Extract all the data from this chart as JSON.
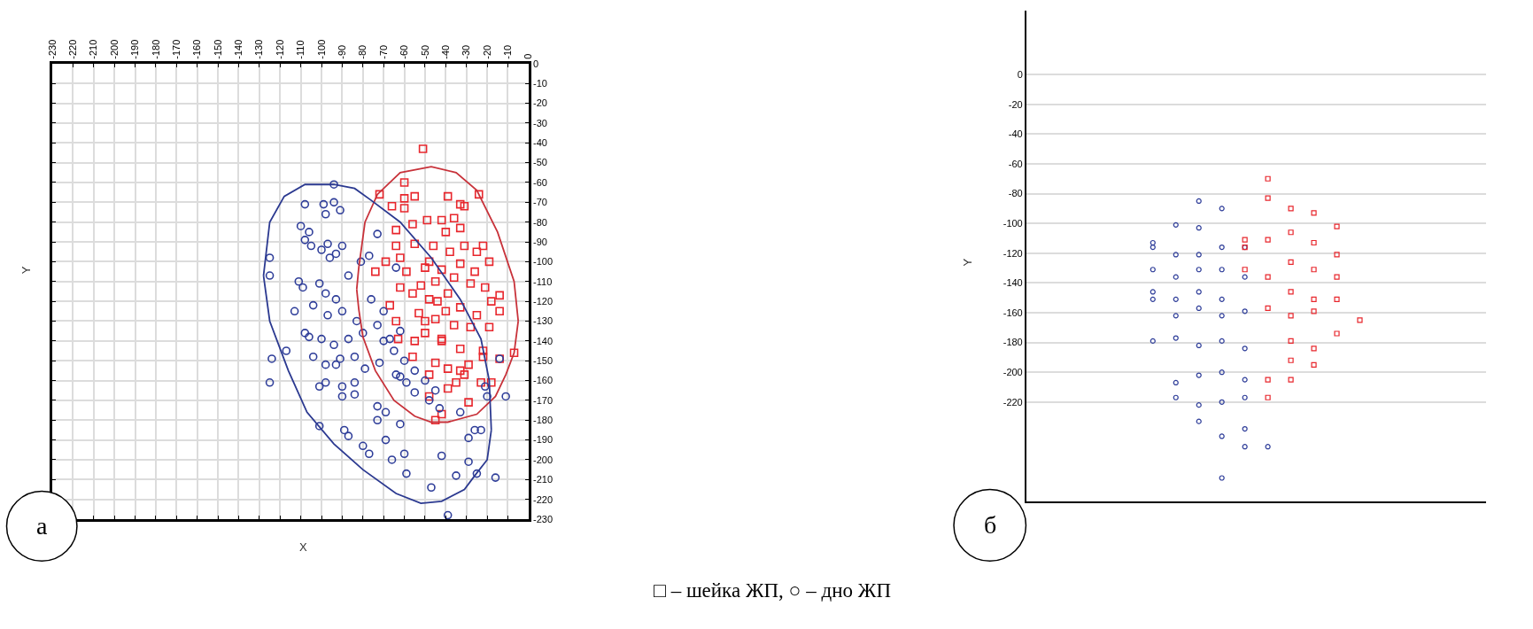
{
  "chart_data": [
    {
      "type": "scatter",
      "xlabel": "X",
      "ylabel": "Y",
      "annotations": [
        "а",
        "□ – шейка ЖП, ○ – дно ЖП"
      ],
      "xlim": [
        -230,
        0
      ],
      "ylim": [
        -230,
        0
      ],
      "xticks": [
        -230,
        -220,
        -210,
        -200,
        -190,
        -180,
        -170,
        -160,
        -150,
        -140,
        -130,
        -120,
        -110,
        -100,
        -90,
        -80,
        -70,
        -60,
        -50,
        -40,
        -30,
        -20,
        -10,
        0
      ],
      "yticks": [
        0,
        -10,
        -20,
        -30,
        -40,
        -50,
        -60,
        -70,
        -80,
        -90,
        -100,
        -110,
        -120,
        -130,
        -140,
        -150,
        -160,
        -170,
        -180,
        -190,
        -200,
        -210,
        -220,
        -230
      ],
      "grid": true,
      "series": [
        {
          "marker": "square",
          "color": "#e8262c",
          "x": [
            -51,
            -60,
            -72,
            -66,
            -60,
            -55,
            -60,
            -39,
            -33,
            -31,
            -24,
            -64,
            -56,
            -49,
            -42,
            -36,
            -33,
            -40,
            -22,
            -19,
            -25,
            -31,
            -46,
            -55,
            -64,
            -69,
            -62,
            -74,
            -59,
            -50,
            -42,
            -33,
            -26,
            -21,
            -28,
            -14,
            -18,
            -14,
            -62,
            -56,
            -48,
            -39,
            -33,
            -25,
            -19,
            -28,
            -36,
            -45,
            -53,
            -64,
            -67,
            -50,
            -42,
            -33,
            -7,
            -14,
            -22,
            -45,
            -39,
            -31,
            -48,
            -56,
            -63,
            -29,
            -22,
            -35,
            -29,
            -23,
            -18,
            -42,
            -45,
            -39,
            -48,
            -33,
            -45,
            -40,
            -50,
            -42,
            -55,
            -48,
            -38,
            -52,
            -44,
            -36
          ],
          "values": [
            -43,
            -60,
            -66,
            -72,
            -73,
            -67,
            -68,
            -67,
            -71,
            -72,
            -66,
            -84,
            -81,
            -79,
            -79,
            -78,
            -83,
            -85,
            -92,
            -100,
            -95,
            -92,
            -92,
            -91,
            -92,
            -100,
            -98,
            -105,
            -105,
            -103,
            -104,
            -101,
            -105,
            -113,
            -111,
            -117,
            -120,
            -125,
            -113,
            -116,
            -119,
            -116,
            -123,
            -127,
            -133,
            -133,
            -132,
            -129,
            -126,
            -130,
            -122,
            -136,
            -139,
            -144,
            -146,
            -149,
            -145,
            -151,
            -154,
            -157,
            -157,
            -148,
            -139,
            -152,
            -148,
            -161,
            -171,
            -161,
            -161,
            -177,
            -180,
            -164,
            -168,
            -155,
            -110,
            -125,
            -130,
            -140,
            -140,
            -100,
            -95,
            -112,
            -120,
            -108
          ]
        },
        {
          "marker": "circle",
          "color": "#2e3d99",
          "x": [
            -94,
            -108,
            -99,
            -98,
            -94,
            -91,
            -125,
            -73,
            -110,
            -108,
            -105,
            -97,
            -93,
            -90,
            -106,
            -100,
            -96,
            -125,
            -77,
            -111,
            -109,
            -101,
            -98,
            -93,
            -87,
            -81,
            -113,
            -104,
            -97,
            -90,
            -83,
            -108,
            -106,
            -100,
            -94,
            -87,
            -80,
            -73,
            -76,
            -70,
            -64,
            -124,
            -117,
            -104,
            -98,
            -91,
            -84,
            -79,
            -72,
            -64,
            -59,
            -67,
            -125,
            -101,
            -90,
            -84,
            -14,
            -21,
            -98,
            -90,
            -84,
            -73,
            -69,
            -73,
            -62,
            -89,
            -87,
            -101,
            -80,
            -77,
            -69,
            -66,
            -60,
            -59,
            -47,
            -42,
            -39,
            -35,
            -29,
            -25,
            -16,
            -29,
            -26,
            -23,
            -11,
            -20,
            -55,
            -48,
            -43,
            -33,
            -62,
            -93,
            -65,
            -60,
            -55,
            -70,
            -62,
            -50,
            -45
          ],
          "values": [
            -61,
            -71,
            -71,
            -76,
            -70,
            -74,
            -98,
            -86,
            -82,
            -89,
            -92,
            -91,
            -96,
            -92,
            -85,
            -94,
            -98,
            -107,
            -97,
            -110,
            -113,
            -111,
            -116,
            -119,
            -107,
            -100,
            -125,
            -122,
            -127,
            -125,
            -130,
            -136,
            -138,
            -139,
            -142,
            -139,
            -136,
            -132,
            -119,
            -125,
            -103,
            -149,
            -145,
            -148,
            -152,
            -149,
            -148,
            -154,
            -151,
            -157,
            -161,
            -139,
            -161,
            -163,
            -163,
            -161,
            -149,
            -163,
            -161,
            -168,
            -167,
            -173,
            -176,
            -180,
            -182,
            -185,
            -188,
            -183,
            -193,
            -197,
            -190,
            -200,
            -197,
            -207,
            -214,
            -198,
            -228,
            -208,
            -201,
            -207,
            -209,
            -189,
            -185,
            -185,
            -168,
            -168,
            -166,
            -170,
            -174,
            -176,
            -158,
            -152,
            -145,
            -150,
            -155,
            -140,
            -135,
            -160,
            -165
          ]
        },
        {
          "type": "line",
          "marker": "none",
          "line_style": "solid",
          "color": "#c8323a",
          "x": [
            -83,
            -82,
            -79,
            -73,
            -62,
            -47,
            -35,
            -25,
            -15,
            -7,
            -5
          ],
          "values": [
            -114,
            -103,
            -80,
            -66,
            -55,
            -52,
            -55,
            -64,
            -85,
            -110,
            -130
          ]
        },
        {
          "type": "line",
          "marker": "none",
          "line_style": "solid",
          "color": "#c8323a",
          "x": [
            -83,
            -82,
            -80,
            -74,
            -65,
            -55,
            -47,
            -39,
            -25,
            -16,
            -11,
            -7,
            -5
          ],
          "values": [
            -114,
            -124,
            -138,
            -155,
            -170,
            -178,
            -181,
            -181,
            -177,
            -168,
            -157,
            -146,
            -130
          ]
        },
        {
          "type": "line",
          "marker": "none",
          "line_style": "solid",
          "color": "#2b3990",
          "x": [
            -128,
            -125,
            -118,
            -108,
            -94,
            -84,
            -76,
            -62,
            -47,
            -33,
            -23,
            -19,
            -18
          ],
          "values": [
            -107,
            -80,
            -67,
            -61,
            -61,
            -63,
            -69,
            -80,
            -98,
            -119,
            -139,
            -160,
            -185
          ]
        },
        {
          "type": "line",
          "marker": "none",
          "line_style": "solid",
          "color": "#2b3990",
          "x": [
            -128,
            -125,
            -116,
            -107,
            -94,
            -80,
            -64,
            -52,
            -42,
            -31,
            -26,
            -20,
            -18
          ],
          "values": [
            -107,
            -130,
            -155,
            -176,
            -192,
            -205,
            -217,
            -222,
            -221,
            -215,
            -208,
            -200,
            -185
          ]
        }
      ]
    },
    {
      "type": "scatter",
      "ylabel": "Y",
      "annotations": [
        "б"
      ],
      "categories": [
        null,
        null,
        null,
        null,
        null,
        null,
        null,
        null,
        null,
        null,
        null,
        null,
        null,
        null,
        null,
        null,
        null,
        null,
        null,
        null
      ],
      "ylim": [
        -287,
        43
      ],
      "yticks": [
        0,
        -20,
        -40,
        -60,
        -80,
        -100,
        -120,
        -140,
        -160,
        -180,
        -200,
        -220
      ],
      "grid": "y",
      "tick_labels": "y",
      "series": [
        {
          "marker": "circle",
          "color": "#2e3d99",
          "values": [
            null,
            null,
            null,
            null,
            null,
            -113,
            -101,
            -85,
            -90,
            -116,
            -250,
            null,
            null,
            null,
            null,
            null,
            null,
            null,
            null,
            null
          ]
        },
        {
          "marker": "circle",
          "color": "#2e3d99",
          "values": [
            null,
            null,
            null,
            null,
            null,
            -116,
            -121,
            -103,
            -116,
            -136,
            null,
            null,
            null,
            null,
            null,
            null,
            null,
            null,
            null,
            null
          ]
        },
        {
          "marker": "circle",
          "color": "#2e3d99",
          "values": [
            null,
            null,
            null,
            null,
            null,
            -131,
            -136,
            -121,
            -131,
            -159,
            null,
            null,
            null,
            null,
            null,
            null,
            null,
            null,
            null,
            null
          ]
        },
        {
          "marker": "circle",
          "color": "#2e3d99",
          "values": [
            null,
            null,
            null,
            null,
            null,
            -146,
            -151,
            -131,
            -151,
            -184,
            null,
            null,
            null,
            null,
            null,
            null,
            null,
            null,
            null,
            null
          ]
        },
        {
          "marker": "circle",
          "color": "#2e3d99",
          "values": [
            null,
            null,
            null,
            null,
            null,
            -151,
            -162,
            -146,
            -162,
            -205,
            null,
            null,
            null,
            null,
            null,
            null,
            null,
            null,
            null,
            null
          ]
        },
        {
          "marker": "circle",
          "color": "#2e3d99",
          "values": [
            null,
            null,
            null,
            null,
            null,
            -179,
            -177,
            -157,
            -179,
            -217,
            null,
            null,
            null,
            null,
            null,
            null,
            null,
            null,
            null,
            null
          ]
        },
        {
          "marker": "circle",
          "color": "#2e3d99",
          "values": [
            null,
            null,
            null,
            null,
            null,
            null,
            -207,
            -182,
            -200,
            -238,
            null,
            null,
            null,
            null,
            null,
            null,
            null,
            null,
            null,
            null
          ]
        },
        {
          "marker": "circle",
          "color": "#2e3d99",
          "values": [
            null,
            null,
            null,
            null,
            null,
            null,
            -217,
            -202,
            -220,
            -250,
            null,
            null,
            null,
            null,
            null,
            null,
            null,
            null,
            null,
            null
          ]
        },
        {
          "marker": "circle",
          "color": "#2e3d99",
          "values": [
            null,
            null,
            null,
            null,
            null,
            null,
            null,
            -222,
            -243,
            null,
            null,
            null,
            null,
            null,
            null,
            null,
            null,
            null,
            null,
            null
          ]
        },
        {
          "marker": "circle",
          "color": "#2e3d99",
          "values": [
            null,
            null,
            null,
            null,
            null,
            null,
            null,
            -233,
            -271,
            null,
            null,
            null,
            null,
            null,
            null,
            null,
            null,
            null,
            null,
            null
          ]
        },
        {
          "marker": "square",
          "color": "#e8262c",
          "values": [
            null,
            null,
            null,
            null,
            null,
            null,
            null,
            null,
            null,
            -111,
            -70,
            -90,
            -93,
            -102,
            -165,
            null,
            null,
            null,
            null,
            null
          ]
        },
        {
          "marker": "square",
          "color": "#e8262c",
          "values": [
            null,
            null,
            null,
            null,
            null,
            null,
            null,
            null,
            null,
            -116,
            -83,
            -106,
            -113,
            -121,
            null,
            null,
            null,
            null,
            null,
            null
          ]
        },
        {
          "marker": "square",
          "color": "#e8262c",
          "values": [
            null,
            null,
            null,
            null,
            null,
            null,
            null,
            null,
            null,
            -131,
            -111,
            -126,
            -131,
            -136,
            null,
            null,
            null,
            null,
            null,
            null
          ]
        },
        {
          "marker": "square",
          "color": "#e8262c",
          "values": [
            null,
            null,
            null,
            null,
            null,
            null,
            null,
            null,
            null,
            null,
            -136,
            -146,
            -151,
            -151,
            null,
            null,
            null,
            null,
            null,
            null
          ]
        },
        {
          "marker": "square",
          "color": "#e8262c",
          "values": [
            null,
            null,
            null,
            null,
            null,
            null,
            null,
            null,
            null,
            null,
            -157,
            -162,
            -159,
            -174,
            null,
            null,
            null,
            null,
            null,
            null
          ]
        },
        {
          "marker": "square",
          "color": "#e8262c",
          "values": [
            null,
            null,
            null,
            null,
            null,
            null,
            null,
            null,
            null,
            null,
            -205,
            -179,
            -184,
            null,
            null,
            null,
            null,
            null,
            null,
            null
          ]
        },
        {
          "marker": "square",
          "color": "#e8262c",
          "values": [
            null,
            null,
            null,
            null,
            null,
            null,
            null,
            null,
            null,
            null,
            -217,
            -192,
            -195,
            null,
            null,
            null,
            null,
            null,
            null,
            null
          ]
        },
        {
          "marker": "square",
          "color": "#e8262c",
          "values": [
            null,
            null,
            null,
            null,
            null,
            null,
            null,
            null,
            null,
            null,
            null,
            -205,
            null,
            null,
            null,
            null,
            null,
            null,
            null,
            null
          ]
        }
      ]
    }
  ]
}
